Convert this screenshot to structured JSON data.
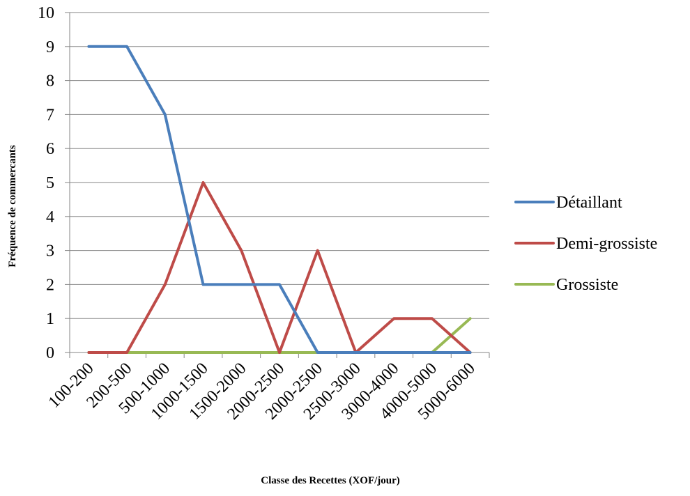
{
  "chart_data": {
    "type": "line",
    "title": "",
    "xlabel": "Classe des Recettes (XOF/jour)",
    "ylabel": "Fréquence de commercants",
    "ylim": [
      0,
      10
    ],
    "yticks": [
      "0",
      "1",
      "2",
      "3",
      "4",
      "5",
      "6",
      "7",
      "8",
      "9",
      "10"
    ],
    "grid": true,
    "legend": "right",
    "categories": [
      "100-200",
      "200-500",
      "500-1000",
      "1000-1500",
      "1500-2000",
      "2000-2500",
      "2000-2500",
      "2500-3000",
      "3000-4000",
      "4000-5000",
      "5000-6000"
    ],
    "series": [
      {
        "name": "Détaillant",
        "color": "#4a7ebb",
        "values": [
          9,
          9,
          7,
          2,
          2,
          2,
          0,
          0,
          0,
          0,
          0
        ]
      },
      {
        "name": "Demi-grossiste",
        "color": "#be4b48",
        "values": [
          0,
          0,
          2,
          5,
          3,
          0,
          3,
          0,
          1,
          1,
          0
        ]
      },
      {
        "name": "Grossiste",
        "color": "#98b954",
        "values": [
          0,
          0,
          0,
          0,
          0,
          0,
          0,
          0,
          0,
          0,
          1
        ]
      }
    ]
  }
}
